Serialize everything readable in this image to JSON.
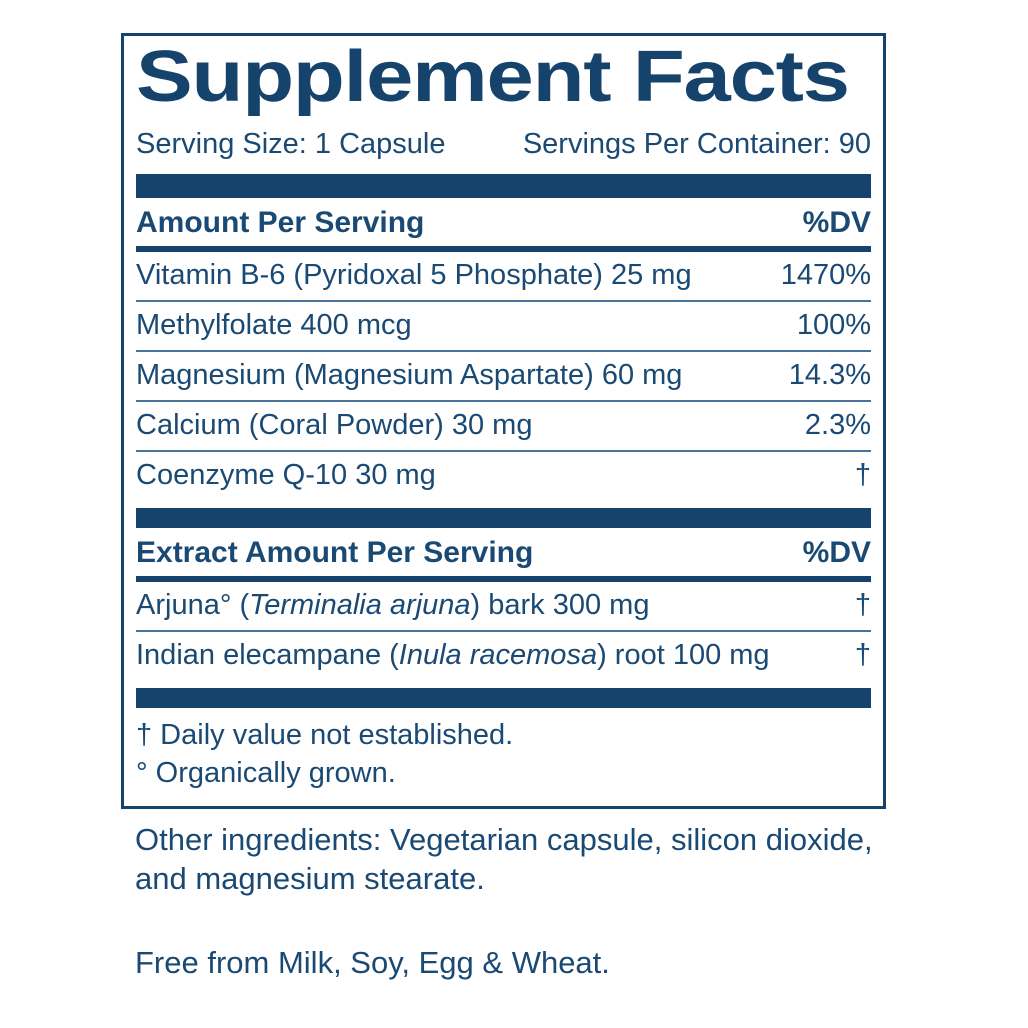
{
  "colors": {
    "navy_bars_border": "#16436B",
    "text": "#1A4A74",
    "thin_separator": "#4A739C",
    "background": "#FFFFFF"
  },
  "label": {
    "title": "Supplement Facts",
    "serving_size": "Serving Size: 1 Capsule",
    "servings_per_container": "Servings Per Container: 90",
    "main_section": {
      "header": "Amount Per Serving",
      "dv_header": "%DV",
      "rows": [
        {
          "name": "Vitamin B-6 (Pyridoxal 5 Phosphate) 25 mg",
          "dv": "1470%"
        },
        {
          "name": "Methylfolate 400 mcg",
          "dv": "100%"
        },
        {
          "name": "Magnesium (Magnesium Aspartate) 60 mg",
          "dv": "14.3%"
        },
        {
          "name": "Calcium (Coral Powder) 30 mg",
          "dv": "2.3%"
        },
        {
          "name": "Coenzyme Q-10 30 mg",
          "dv": "†"
        }
      ]
    },
    "extract_section": {
      "header": "Extract Amount Per Serving",
      "dv_header": "%DV",
      "rows": [
        {
          "name_prefix": "Arjuna° (",
          "name_italic": "Terminalia arjuna",
          "name_suffix": ") bark 300 mg",
          "dv": "†"
        },
        {
          "name_prefix": "Indian elecampane (",
          "name_italic": "Inula racemosa",
          "name_suffix": ") root 100 mg",
          "dv": "†"
        }
      ]
    },
    "footnotes": [
      "† Daily value not established.",
      "° Organically grown."
    ],
    "other_ingredients_line1": "Other ingredients: Vegetarian capsule, silicon dioxide,",
    "other_ingredients_line2": "and magnesium stearate.",
    "free_from": "Free from Milk, Soy, Egg & Wheat."
  }
}
